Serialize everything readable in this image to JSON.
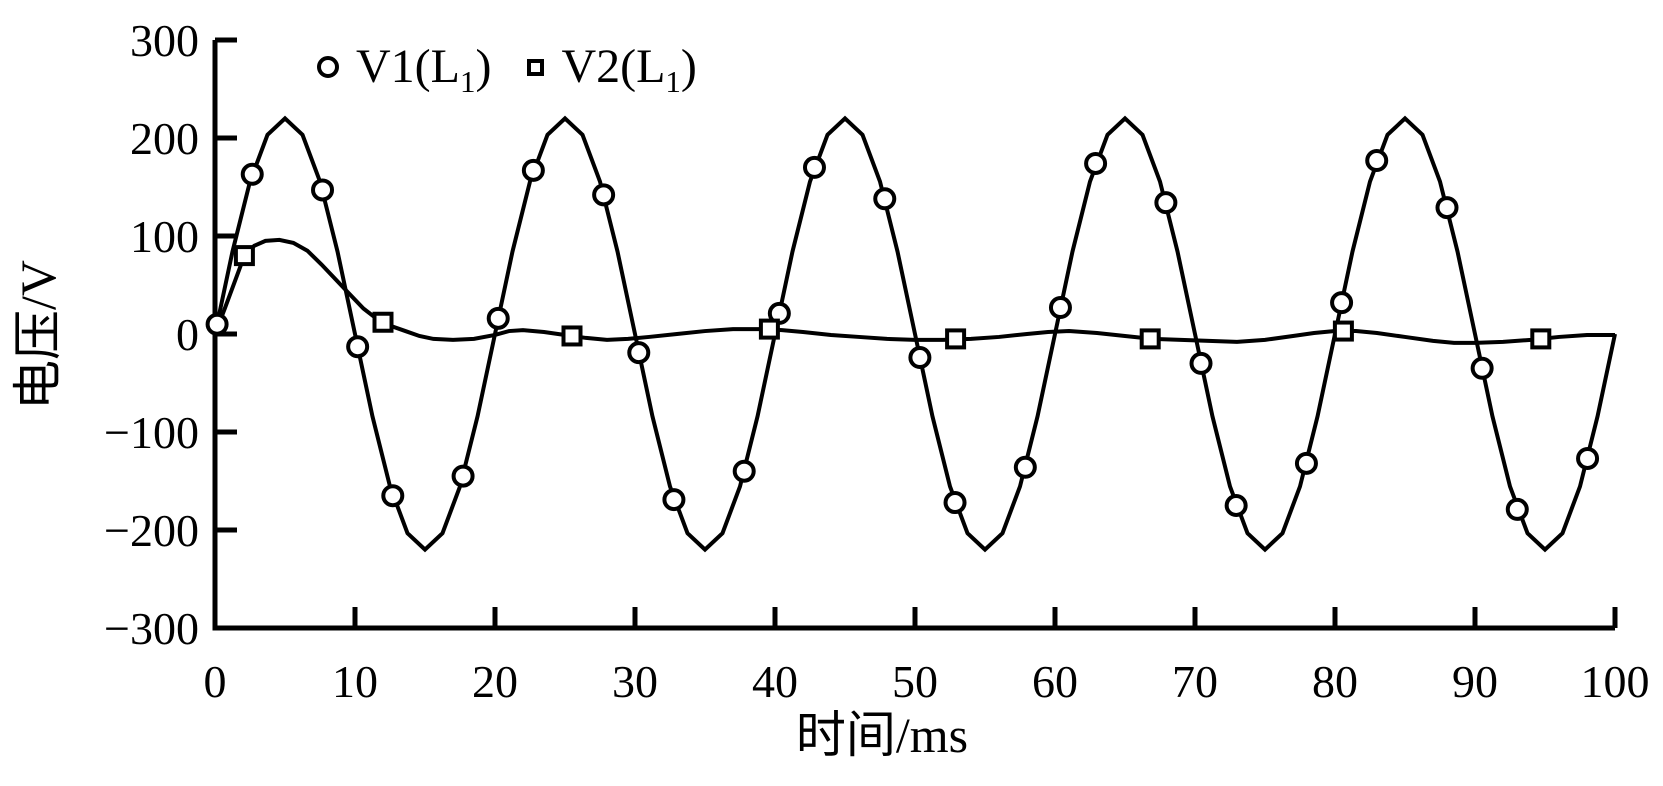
{
  "figure": {
    "background": "#ffffff",
    "stroke_color": "#000000"
  },
  "chart_data": {
    "type": "line",
    "title": "",
    "xlabel": "时间/ms",
    "ylabel": "电压/V",
    "xlim": [
      0,
      100
    ],
    "ylim": [
      -300,
      300
    ],
    "x_ticks": [
      0,
      10,
      20,
      30,
      40,
      50,
      60,
      70,
      80,
      90,
      100
    ],
    "y_ticks": [
      300,
      200,
      100,
      0,
      -100,
      -200,
      -300
    ],
    "grid": false,
    "legend_position": "top-inside",
    "series": [
      {
        "name": "V1(L1)",
        "legend": {
          "prefix": "V1(L",
          "sub": "1",
          "suffix": ")"
        },
        "marker": "circle",
        "line": {
          "type": "sine",
          "amplitude": 220,
          "period_ms": 20,
          "phase_ms": 0,
          "offset_v": 0,
          "sample_step_ms": 1.25
        },
        "marker_points": [
          [
            0.15,
            10
          ],
          [
            2.66,
            163
          ],
          [
            7.68,
            147
          ],
          [
            10.19,
            -13
          ],
          [
            12.7,
            -165
          ],
          [
            17.72,
            -145
          ],
          [
            20.23,
            16
          ],
          [
            22.74,
            167
          ],
          [
            27.76,
            142
          ],
          [
            30.27,
            -19
          ],
          [
            32.78,
            -169
          ],
          [
            37.8,
            -140
          ],
          [
            40.31,
            21
          ],
          [
            42.82,
            170
          ],
          [
            47.84,
            138
          ],
          [
            50.35,
            -24
          ],
          [
            52.86,
            -172
          ],
          [
            57.88,
            -136
          ],
          [
            60.39,
            27
          ],
          [
            62.9,
            174
          ],
          [
            67.92,
            134
          ],
          [
            70.43,
            -30
          ],
          [
            72.94,
            -175
          ],
          [
            77.96,
            -132
          ],
          [
            80.47,
            32
          ],
          [
            82.98,
            177
          ],
          [
            88.0,
            129
          ],
          [
            90.51,
            -35
          ],
          [
            93.02,
            -179
          ],
          [
            98.04,
            -127
          ]
        ]
      },
      {
        "name": "V2(L1)",
        "legend": {
          "prefix": "V2(L",
          "sub": "1",
          "suffix": ")"
        },
        "marker": "square",
        "line": {
          "type": "polyline"
        },
        "line_points": [
          [
            0,
            0
          ],
          [
            0.7,
            26
          ],
          [
            1.4,
            53
          ],
          [
            2.1,
            80
          ],
          [
            2.8,
            90
          ],
          [
            3.6,
            95
          ],
          [
            4.6,
            96
          ],
          [
            5.6,
            93
          ],
          [
            6.6,
            85
          ],
          [
            7.6,
            71
          ],
          [
            8.6,
            56
          ],
          [
            9.6,
            41
          ],
          [
            10.6,
            26
          ],
          [
            11.6,
            15
          ],
          [
            12.6,
            8
          ],
          [
            13.6,
            3
          ],
          [
            14.6,
            -2
          ],
          [
            15.6,
            -5
          ],
          [
            17,
            -6
          ],
          [
            18.5,
            -5
          ],
          [
            20,
            -1
          ],
          [
            21,
            3
          ],
          [
            22,
            4
          ],
          [
            23.5,
            2
          ],
          [
            25,
            -1
          ],
          [
            26.5,
            -4
          ],
          [
            28,
            -6
          ],
          [
            29.5,
            -5
          ],
          [
            31,
            -3
          ],
          [
            33,
            0
          ],
          [
            35,
            3
          ],
          [
            37,
            5
          ],
          [
            39,
            5
          ],
          [
            40.5,
            4
          ],
          [
            42,
            2
          ],
          [
            44,
            -1
          ],
          [
            46,
            -3
          ],
          [
            48,
            -5
          ],
          [
            50,
            -6
          ],
          [
            52,
            -6
          ],
          [
            54,
            -5
          ],
          [
            56,
            -3
          ],
          [
            58,
            0
          ],
          [
            59.5,
            2
          ],
          [
            61,
            3
          ],
          [
            63,
            1
          ],
          [
            65,
            -2
          ],
          [
            67,
            -5
          ],
          [
            69,
            -6
          ],
          [
            71,
            -7
          ],
          [
            73,
            -8
          ],
          [
            75,
            -6
          ],
          [
            77,
            -2
          ],
          [
            78.5,
            1
          ],
          [
            80,
            3
          ],
          [
            81.5,
            3
          ],
          [
            83,
            1
          ],
          [
            85,
            -3
          ],
          [
            87,
            -7
          ],
          [
            88.5,
            -9
          ],
          [
            90,
            -9
          ],
          [
            92,
            -8
          ],
          [
            94,
            -6
          ],
          [
            96,
            -3
          ],
          [
            98,
            -1
          ],
          [
            100,
            -1
          ]
        ],
        "marker_points": [
          [
            2.1,
            80
          ],
          [
            12.0,
            12
          ],
          [
            25.5,
            -2
          ],
          [
            39.6,
            5
          ],
          [
            52.9,
            -5
          ],
          [
            66.8,
            -5
          ],
          [
            80.6,
            3
          ],
          [
            94.7,
            -5
          ]
        ]
      }
    ]
  }
}
